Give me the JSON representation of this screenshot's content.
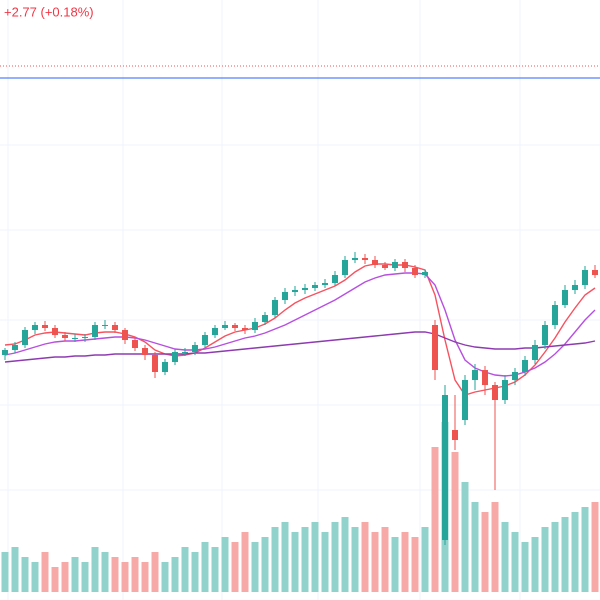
{
  "chart_data": {
    "type": "candlestick",
    "change_label": "+2.77 (+0.18%)",
    "change_color": "#f23645",
    "up_color": "#26a69a",
    "down_color": "#ef5350",
    "volume_up_color": "#92d2cc",
    "volume_down_color": "#f7a9a7",
    "ylim": [
      0,
      600
    ],
    "volume_lim": [
      0,
      600
    ],
    "open": [
      245,
      250,
      255,
      270,
      275,
      272,
      265,
      262,
      262,
      263,
      275,
      275,
      270,
      260,
      252,
      245,
      228,
      238,
      248,
      248,
      255,
      265,
      272,
      275,
      272,
      270,
      278,
      285,
      300,
      308,
      310,
      312,
      315,
      317,
      325,
      340,
      342,
      340,
      335,
      332,
      338,
      332,
      325,
      275,
      60,
      170,
      180,
      220,
      230,
      215,
      200,
      220,
      228,
      240,
      255,
      275,
      295,
      310,
      315,
      330
    ],
    "high": [
      252,
      258,
      273,
      278,
      279,
      275,
      268,
      266,
      266,
      278,
      280,
      278,
      272,
      263,
      255,
      248,
      241,
      251,
      252,
      258,
      268,
      275,
      279,
      277,
      275,
      282,
      288,
      303,
      312,
      314,
      316,
      318,
      321,
      329,
      344,
      348,
      346,
      344,
      338,
      341,
      341,
      335,
      330,
      280,
      215,
      205,
      225,
      236,
      234,
      218,
      225,
      232,
      244,
      260,
      279,
      299,
      315,
      320,
      334,
      335
    ],
    "low": [
      240,
      247,
      252,
      266,
      269,
      262,
      259,
      258,
      258,
      260,
      271,
      267,
      256,
      249,
      240,
      222,
      225,
      235,
      244,
      245,
      252,
      262,
      270,
      269,
      266,
      267,
      275,
      282,
      296,
      304,
      306,
      309,
      312,
      314,
      322,
      337,
      336,
      332,
      330,
      329,
      328,
      322,
      322,
      220,
      55,
      150,
      175,
      210,
      205,
      110,
      196,
      215,
      224,
      236,
      251,
      271,
      292,
      306,
      311,
      322
    ],
    "close": [
      250,
      255,
      270,
      275,
      272,
      265,
      262,
      262,
      263,
      275,
      275,
      270,
      260,
      252,
      245,
      228,
      238,
      248,
      248,
      255,
      265,
      272,
      275,
      272,
      270,
      278,
      285,
      300,
      308,
      310,
      312,
      315,
      317,
      325,
      340,
      342,
      340,
      335,
      332,
      338,
      332,
      325,
      328,
      230,
      205,
      160,
      220,
      230,
      215,
      200,
      220,
      228,
      240,
      255,
      275,
      295,
      310,
      315,
      330,
      325
    ],
    "volume": [
      40,
      45,
      35,
      30,
      40,
      25,
      30,
      35,
      30,
      45,
      40,
      35,
      30,
      35,
      30,
      40,
      30,
      35,
      45,
      40,
      50,
      45,
      55,
      50,
      60,
      50,
      55,
      65,
      70,
      60,
      65,
      70,
      60,
      70,
      75,
      65,
      70,
      60,
      65,
      55,
      60,
      55,
      65,
      145,
      170,
      140,
      110,
      90,
      80,
      90,
      70,
      60,
      50,
      55,
      65,
      70,
      75,
      80,
      85,
      90
    ],
    "moving_averages": [
      {
        "color": "#f7525f",
        "values": [
          255,
          256,
          260,
          265,
          267,
          268,
          267,
          266,
          265,
          267,
          268,
          268,
          266,
          263,
          258,
          250,
          246,
          244,
          245,
          247,
          252,
          258,
          264,
          268,
          270,
          272,
          276,
          282,
          290,
          297,
          302,
          306,
          310,
          314,
          320,
          328,
          334,
          336,
          336,
          335,
          335,
          333,
          330,
          305,
          260,
          220,
          205,
          208,
          210,
          212,
          214,
          218,
          225,
          235,
          248,
          262,
          278,
          292,
          305,
          312
        ]
      },
      {
        "color": "#b84fe0",
        "values": [
          245,
          247,
          250,
          253,
          256,
          258,
          259,
          259,
          260,
          261,
          262,
          263,
          263,
          262,
          260,
          257,
          254,
          251,
          250,
          250,
          251,
          253,
          256,
          259,
          262,
          264,
          267,
          271,
          275,
          280,
          285,
          290,
          295,
          300,
          306,
          312,
          318,
          322,
          325,
          326,
          327,
          327,
          326,
          315,
          290,
          260,
          240,
          232,
          228,
          225,
          224,
          225,
          228,
          232,
          238,
          246,
          256,
          268,
          280,
          290
        ]
      },
      {
        "color": "#8e3bb0",
        "values": [
          238,
          239,
          240,
          241,
          242,
          243,
          243,
          244,
          244,
          245,
          245,
          246,
          246,
          246,
          246,
          246,
          246,
          246,
          246,
          247,
          247,
          248,
          249,
          250,
          251,
          252,
          253,
          254,
          255,
          256,
          257,
          258,
          259,
          260,
          261,
          262,
          263,
          264,
          265,
          266,
          267,
          268,
          268,
          266,
          262,
          258,
          255,
          253,
          252,
          251,
          251,
          251,
          252,
          252,
          253,
          254,
          255,
          256,
          257,
          259
        ]
      }
    ],
    "price_lines": [
      {
        "value": 534,
        "color": "#ef5350",
        "style": "dotted"
      },
      {
        "value": 522,
        "color": "#2962ff",
        "style": "solid"
      }
    ]
  }
}
